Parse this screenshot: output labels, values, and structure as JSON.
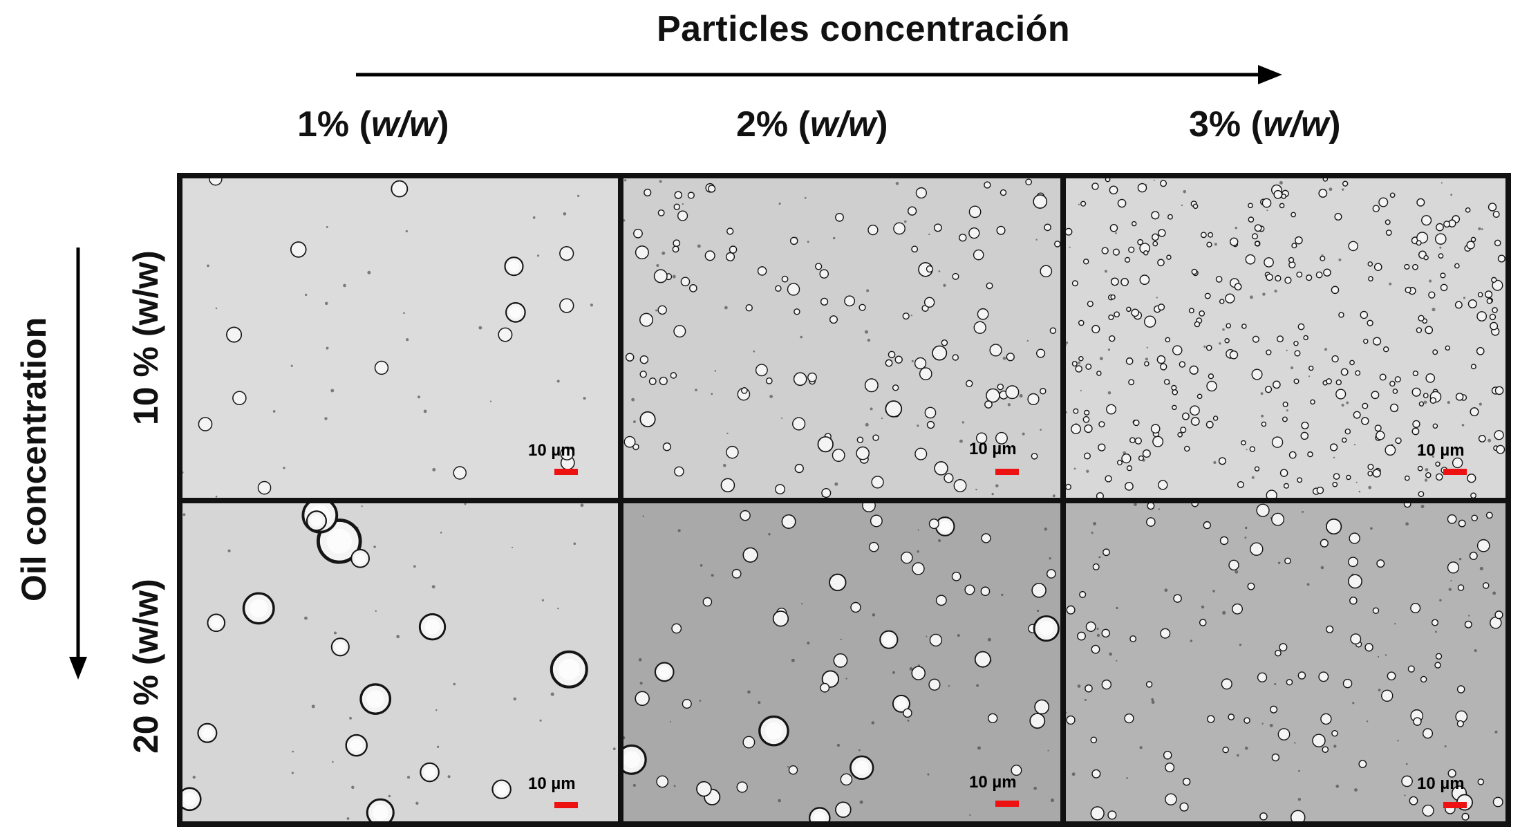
{
  "header": {
    "title": "Particles concentración",
    "columns": [
      {
        "value": "1%",
        "unit": "w/w"
      },
      {
        "value": "2%",
        "unit": "w/w"
      },
      {
        "value": "3%",
        "unit": "w/w"
      }
    ]
  },
  "side": {
    "title": "Oil concentration",
    "rows": [
      "10 % (w/w)",
      "20 % (w/w)"
    ]
  },
  "panels": [
    {
      "row": 0,
      "col": 0,
      "scale_label": "10 µm",
      "background": "#dcdcdc",
      "droplet_density": "low"
    },
    {
      "row": 0,
      "col": 1,
      "scale_label": "10 µm",
      "background": "#cfcfcf",
      "droplet_density": "medium"
    },
    {
      "row": 0,
      "col": 2,
      "scale_label": "10 µm",
      "background": "#d8d8d8",
      "droplet_density": "high"
    },
    {
      "row": 1,
      "col": 0,
      "scale_label": "10 µm",
      "background": "#d6d6d6",
      "droplet_density": "low-large"
    },
    {
      "row": 1,
      "col": 1,
      "scale_label": "10 µm",
      "background": "#a9a9a9",
      "droplet_density": "medium"
    },
    {
      "row": 1,
      "col": 2,
      "scale_label": "10 µm",
      "background": "#b4b4b4",
      "droplet_density": "medium-small"
    }
  ],
  "colors": {
    "scale_bar": "#ee1111",
    "border": "#111111"
  }
}
